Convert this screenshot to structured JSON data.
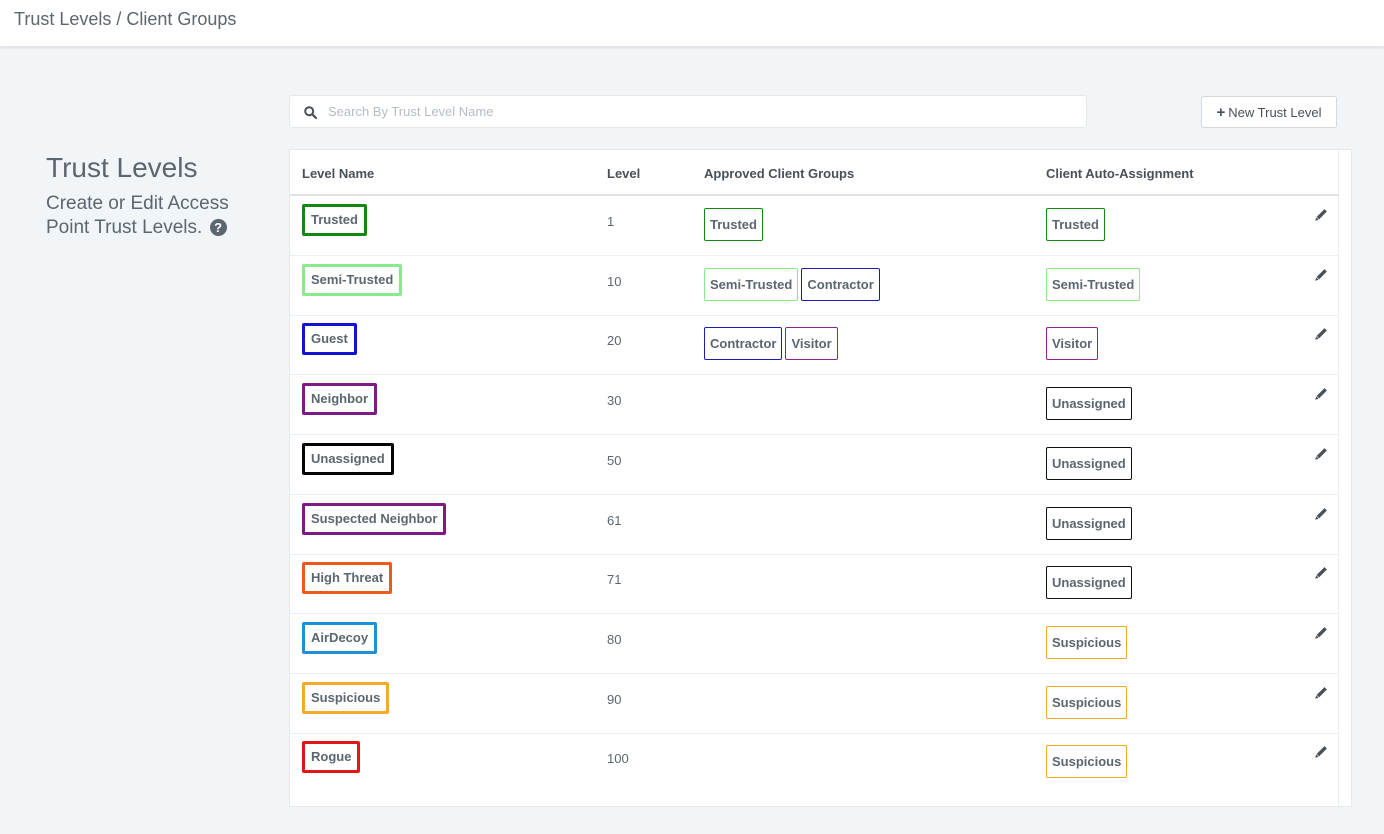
{
  "breadcrumb": "Trust Levels / Client Groups",
  "sidebar": {
    "title": "Trust Levels",
    "description": "Create or Edit Access Point Trust Levels.",
    "help_icon_glyph": "?"
  },
  "search": {
    "placeholder": "Search By Trust Level Name",
    "value": ""
  },
  "new_button": {
    "icon": "+",
    "label": "New Trust Level"
  },
  "table": {
    "columns": [
      "Level Name",
      "Level",
      "Approved Client Groups",
      "Client Auto-Assignment"
    ],
    "rows": [
      {
        "name": "Trusted",
        "color": "#138713",
        "level": "1",
        "groups": [
          {
            "label": "Trusted",
            "color": "#138713"
          }
        ],
        "auto": {
          "label": "Trusted",
          "color": "#138713"
        }
      },
      {
        "name": "Semi-Trusted",
        "color": "#8be88b",
        "level": "10",
        "groups": [
          {
            "label": "Semi-Trusted",
            "color": "#8be88b"
          },
          {
            "label": "Contractor",
            "color": "#1b1bb7"
          }
        ],
        "auto": {
          "label": "Semi-Trusted",
          "color": "#8be88b"
        }
      },
      {
        "name": "Guest",
        "color": "#1212d2",
        "level": "20",
        "groups": [
          {
            "label": "Contractor",
            "color": "#1b1bb7"
          },
          {
            "label": "Visitor",
            "color": "#8a238a"
          }
        ],
        "auto": {
          "label": "Visitor",
          "color": "#8a238a"
        }
      },
      {
        "name": "Neighbor",
        "color": "#7d1a86",
        "level": "30",
        "groups": [],
        "auto": {
          "label": "Unassigned",
          "color": "#111111"
        }
      },
      {
        "name": "Unassigned",
        "color": "#050505",
        "level": "50",
        "groups": [],
        "auto": {
          "label": "Unassigned",
          "color": "#111111"
        }
      },
      {
        "name": "Suspected Neighbor",
        "color": "#7d1a86",
        "level": "61",
        "groups": [],
        "auto": {
          "label": "Unassigned",
          "color": "#111111"
        }
      },
      {
        "name": "High Threat",
        "color": "#ec5a1c",
        "level": "71",
        "groups": [],
        "auto": {
          "label": "Unassigned",
          "color": "#111111"
        }
      },
      {
        "name": "AirDecoy",
        "color": "#1e90d6",
        "level": "80",
        "groups": [],
        "auto": {
          "label": "Suspicious",
          "color": "#f0a724"
        }
      },
      {
        "name": "Suspicious",
        "color": "#f5aa2a",
        "level": "90",
        "groups": [],
        "auto": {
          "label": "Suspicious",
          "color": "#f0a724"
        }
      },
      {
        "name": "Rogue",
        "color": "#e01818",
        "level": "100",
        "groups": [],
        "auto": {
          "label": "Suspicious",
          "color": "#f0a724"
        }
      }
    ]
  },
  "icons": {
    "search": "search-icon",
    "edit": "pencil-icon",
    "help": "question-circle-icon",
    "add": "plus-icon"
  }
}
